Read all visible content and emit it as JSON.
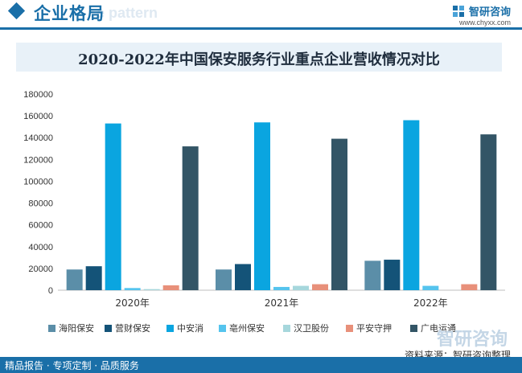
{
  "header": {
    "title": "企业格局",
    "bg_text": "e pattern",
    "brand_name": "智研咨询",
    "brand_url": "www.chyxx.com"
  },
  "chart_data": {
    "type": "bar",
    "title": "2020-2022年中国保安服务行业重点企业营收情况对比",
    "categories": [
      "2020年",
      "2021年",
      "2022年"
    ],
    "ylim": [
      0,
      180000
    ],
    "yticks": [
      0,
      20000,
      40000,
      60000,
      80000,
      100000,
      120000,
      140000,
      160000,
      180000
    ],
    "grid": false,
    "legend_position": "bottom",
    "series": [
      {
        "name": "海阳保安",
        "color": "#5b8ea8",
        "values": [
          19000,
          19000,
          27000
        ]
      },
      {
        "name": "营财保安",
        "color": "#145378",
        "values": [
          22000,
          24000,
          28000
        ]
      },
      {
        "name": "中安消",
        "color": "#0aa5e0",
        "values": [
          153000,
          154000,
          156000
        ]
      },
      {
        "name": "亳州保安",
        "color": "#55c4ee",
        "values": [
          2000,
          3000,
          4000
        ]
      },
      {
        "name": "汉卫股份",
        "color": "#a6d7dc",
        "values": [
          1000,
          4000,
          0
        ]
      },
      {
        "name": "平安守押",
        "color": "#e8907a",
        "values": [
          4500,
          5500,
          5500
        ]
      },
      {
        "name": "广电运通",
        "color": "#335566",
        "values": [
          132000,
          139000,
          143000
        ]
      }
    ]
  },
  "watermark": "智研咨询",
  "source": "资料来源：智研咨询整理",
  "footer": "精品报告 · 专项定制 · 品质服务"
}
